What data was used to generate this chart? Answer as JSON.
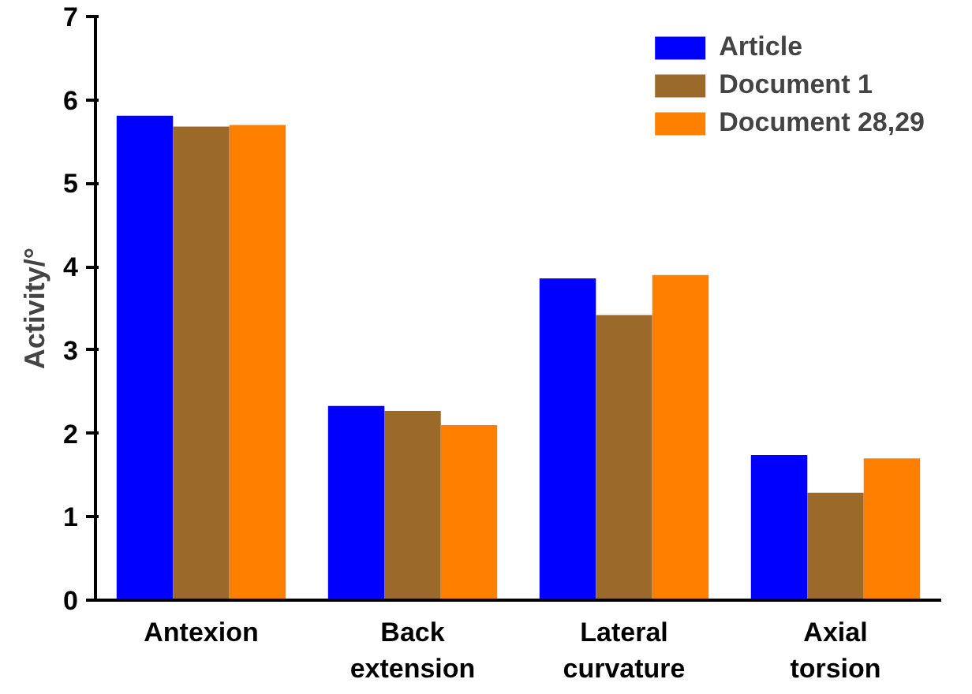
{
  "chart_data": {
    "type": "bar",
    "ylabel": "Activity/°",
    "categories": [
      "Antexion",
      "Back\nextension",
      "Lateral\ncurvature",
      "Axial\ntorsion"
    ],
    "series": [
      {
        "name": "Article",
        "color": "#0000ff",
        "values": [
          5.81,
          2.33,
          3.86,
          1.74
        ]
      },
      {
        "name": "Document 1",
        "color": "#9b6a2b",
        "values": [
          5.68,
          2.27,
          3.42,
          1.29
        ]
      },
      {
        "name": "Document 28,29",
        "color": "#ff8000",
        "values": [
          5.7,
          2.1,
          3.9,
          1.7
        ]
      }
    ],
    "ylim": [
      0,
      7
    ],
    "yticks": [
      0,
      1,
      2,
      3,
      4,
      5,
      6,
      7
    ],
    "grid": false,
    "legend": "top right"
  }
}
